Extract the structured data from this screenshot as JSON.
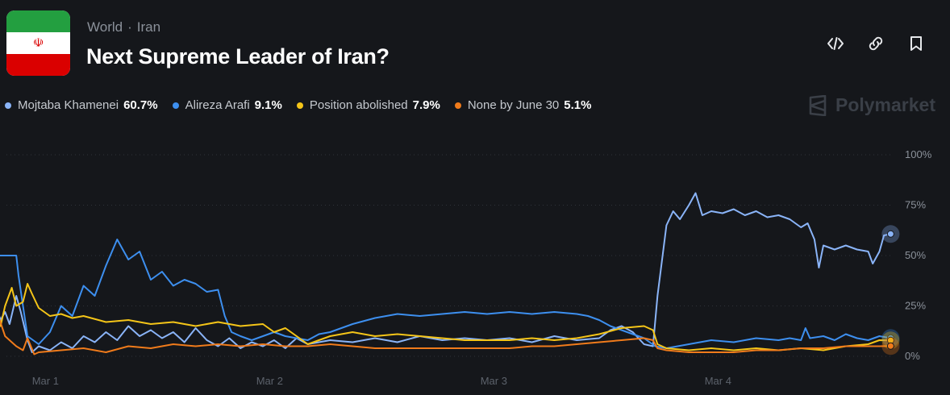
{
  "header": {
    "breadcrumb": [
      "World",
      "Iran"
    ],
    "title": "Next Supreme Leader of Iran?",
    "flag_icon": "iran-flag-icon"
  },
  "actions": [
    {
      "name": "embed-icon",
      "icon": "code-brackets"
    },
    {
      "name": "link-icon",
      "icon": "chain-link"
    },
    {
      "name": "bookmark-icon",
      "icon": "bookmark"
    }
  ],
  "brand": {
    "label": "Polymarket"
  },
  "chart_data": {
    "type": "line",
    "x_labels": [
      "Mar 1",
      "Mar 2",
      "Mar 3",
      "Mar 4"
    ],
    "x_range_days": [
      0,
      4
    ],
    "x_label_days": [
      0.03,
      1.03,
      2.03,
      3.03
    ],
    "y_ticks": [
      "0%",
      "25%",
      "50%",
      "75%",
      "100%"
    ],
    "ylim": [
      0,
      100
    ],
    "grid": true,
    "series": [
      {
        "name": "Mojtaba Khamenei",
        "display_value": "60.7%",
        "color": "#8ab4f8",
        "points": [
          [
            -0.2,
            28
          ],
          [
            -0.17,
            18
          ],
          [
            -0.15,
            22
          ],
          [
            -0.13,
            16
          ],
          [
            -0.1,
            30
          ],
          [
            -0.08,
            22
          ],
          [
            -0.05,
            8
          ],
          [
            -0.03,
            2
          ],
          [
            0,
            5
          ],
          [
            0.05,
            3
          ],
          [
            0.1,
            7
          ],
          [
            0.15,
            4
          ],
          [
            0.2,
            10
          ],
          [
            0.25,
            7
          ],
          [
            0.3,
            12
          ],
          [
            0.35,
            8
          ],
          [
            0.4,
            15
          ],
          [
            0.45,
            10
          ],
          [
            0.5,
            13
          ],
          [
            0.55,
            9
          ],
          [
            0.6,
            12
          ],
          [
            0.65,
            7
          ],
          [
            0.7,
            14
          ],
          [
            0.75,
            8
          ],
          [
            0.8,
            5
          ],
          [
            0.85,
            9
          ],
          [
            0.9,
            4
          ],
          [
            0.95,
            7
          ],
          [
            1.0,
            5
          ],
          [
            1.05,
            8
          ],
          [
            1.1,
            4
          ],
          [
            1.15,
            9
          ],
          [
            1.2,
            6
          ],
          [
            1.3,
            8
          ],
          [
            1.4,
            7
          ],
          [
            1.5,
            9
          ],
          [
            1.6,
            7
          ],
          [
            1.7,
            10
          ],
          [
            1.8,
            8
          ],
          [
            1.9,
            9
          ],
          [
            2.0,
            8
          ],
          [
            2.1,
            9
          ],
          [
            2.2,
            7
          ],
          [
            2.3,
            10
          ],
          [
            2.4,
            8
          ],
          [
            2.5,
            9
          ],
          [
            2.55,
            13
          ],
          [
            2.6,
            15
          ],
          [
            2.65,
            12
          ],
          [
            2.7,
            6
          ],
          [
            2.74,
            5
          ],
          [
            2.76,
            30
          ],
          [
            2.8,
            65
          ],
          [
            2.83,
            72
          ],
          [
            2.86,
            68
          ],
          [
            2.9,
            75
          ],
          [
            2.93,
            81
          ],
          [
            2.96,
            70
          ],
          [
            3.0,
            72
          ],
          [
            3.05,
            71
          ],
          [
            3.1,
            73
          ],
          [
            3.15,
            70
          ],
          [
            3.2,
            72
          ],
          [
            3.25,
            69
          ],
          [
            3.3,
            70
          ],
          [
            3.35,
            68
          ],
          [
            3.4,
            64
          ],
          [
            3.43,
            66
          ],
          [
            3.46,
            58
          ],
          [
            3.48,
            44
          ],
          [
            3.5,
            55
          ],
          [
            3.55,
            53
          ],
          [
            3.6,
            55
          ],
          [
            3.65,
            53
          ],
          [
            3.7,
            52
          ],
          [
            3.72,
            46
          ],
          [
            3.75,
            52
          ],
          [
            3.77,
            60
          ],
          [
            3.8,
            60.7
          ]
        ]
      },
      {
        "name": "Alireza Arafi",
        "display_value": "9.1%",
        "color": "#3d8fef",
        "points": [
          [
            -0.2,
            50
          ],
          [
            -0.1,
            50
          ],
          [
            -0.09,
            40
          ],
          [
            -0.07,
            25
          ],
          [
            -0.05,
            10
          ],
          [
            0,
            6
          ],
          [
            0.05,
            12
          ],
          [
            0.1,
            25
          ],
          [
            0.15,
            20
          ],
          [
            0.2,
            35
          ],
          [
            0.25,
            30
          ],
          [
            0.3,
            45
          ],
          [
            0.35,
            58
          ],
          [
            0.4,
            48
          ],
          [
            0.45,
            52
          ],
          [
            0.5,
            38
          ],
          [
            0.55,
            42
          ],
          [
            0.6,
            35
          ],
          [
            0.65,
            38
          ],
          [
            0.7,
            36
          ],
          [
            0.75,
            32
          ],
          [
            0.8,
            33
          ],
          [
            0.83,
            20
          ],
          [
            0.86,
            12
          ],
          [
            0.9,
            10
          ],
          [
            0.95,
            8
          ],
          [
            1.0,
            10
          ],
          [
            1.05,
            12
          ],
          [
            1.1,
            10
          ],
          [
            1.15,
            9
          ],
          [
            1.2,
            8
          ],
          [
            1.25,
            11
          ],
          [
            1.3,
            12
          ],
          [
            1.4,
            16
          ],
          [
            1.5,
            19
          ],
          [
            1.6,
            21
          ],
          [
            1.7,
            20
          ],
          [
            1.8,
            21
          ],
          [
            1.9,
            22
          ],
          [
            2.0,
            21
          ],
          [
            2.1,
            22
          ],
          [
            2.2,
            21
          ],
          [
            2.3,
            22
          ],
          [
            2.4,
            21
          ],
          [
            2.45,
            20
          ],
          [
            2.5,
            18
          ],
          [
            2.55,
            15
          ],
          [
            2.6,
            13
          ],
          [
            2.65,
            11
          ],
          [
            2.7,
            9
          ],
          [
            2.75,
            5
          ],
          [
            2.8,
            4
          ],
          [
            2.9,
            6
          ],
          [
            3.0,
            8
          ],
          [
            3.1,
            7
          ],
          [
            3.2,
            9
          ],
          [
            3.3,
            8
          ],
          [
            3.35,
            9
          ],
          [
            3.4,
            8
          ],
          [
            3.42,
            14
          ],
          [
            3.44,
            9
          ],
          [
            3.5,
            10
          ],
          [
            3.55,
            8
          ],
          [
            3.6,
            11
          ],
          [
            3.65,
            9
          ],
          [
            3.7,
            8
          ],
          [
            3.75,
            10
          ],
          [
            3.8,
            9.1
          ]
        ]
      },
      {
        "name": "Position abolished",
        "display_value": "7.9%",
        "color": "#f5c518",
        "points": [
          [
            -0.2,
            30
          ],
          [
            -0.17,
            15
          ],
          [
            -0.15,
            25
          ],
          [
            -0.12,
            34
          ],
          [
            -0.1,
            25
          ],
          [
            -0.07,
            27
          ],
          [
            -0.05,
            36
          ],
          [
            -0.03,
            31
          ],
          [
            0,
            24
          ],
          [
            0.05,
            20
          ],
          [
            0.1,
            21
          ],
          [
            0.15,
            19
          ],
          [
            0.2,
            20
          ],
          [
            0.3,
            17
          ],
          [
            0.4,
            18
          ],
          [
            0.5,
            16
          ],
          [
            0.6,
            17
          ],
          [
            0.7,
            15
          ],
          [
            0.8,
            17
          ],
          [
            0.9,
            15
          ],
          [
            1.0,
            16
          ],
          [
            1.05,
            12
          ],
          [
            1.1,
            14
          ],
          [
            1.2,
            6
          ],
          [
            1.3,
            10
          ],
          [
            1.4,
            12
          ],
          [
            1.5,
            10
          ],
          [
            1.6,
            11
          ],
          [
            1.7,
            10
          ],
          [
            1.8,
            9
          ],
          [
            1.9,
            8
          ],
          [
            2.0,
            8
          ],
          [
            2.1,
            8
          ],
          [
            2.2,
            9
          ],
          [
            2.3,
            8
          ],
          [
            2.4,
            9
          ],
          [
            2.5,
            11
          ],
          [
            2.6,
            14
          ],
          [
            2.7,
            15
          ],
          [
            2.74,
            13
          ],
          [
            2.76,
            6
          ],
          [
            2.8,
            4
          ],
          [
            2.9,
            3
          ],
          [
            3.0,
            4
          ],
          [
            3.1,
            3
          ],
          [
            3.2,
            4
          ],
          [
            3.3,
            3
          ],
          [
            3.4,
            4
          ],
          [
            3.5,
            3
          ],
          [
            3.6,
            5
          ],
          [
            3.7,
            6
          ],
          [
            3.75,
            8
          ],
          [
            3.8,
            7.9
          ]
        ]
      },
      {
        "name": "None by June 30",
        "display_value": "5.1%",
        "color": "#f07b1b",
        "points": [
          [
            -0.2,
            35
          ],
          [
            -0.18,
            20
          ],
          [
            -0.15,
            10
          ],
          [
            -0.12,
            7
          ],
          [
            -0.1,
            5
          ],
          [
            -0.07,
            3
          ],
          [
            -0.05,
            9
          ],
          [
            -0.02,
            1
          ],
          [
            0,
            2
          ],
          [
            0.1,
            3
          ],
          [
            0.2,
            4
          ],
          [
            0.3,
            2
          ],
          [
            0.4,
            5
          ],
          [
            0.5,
            4
          ],
          [
            0.6,
            6
          ],
          [
            0.7,
            5
          ],
          [
            0.8,
            6
          ],
          [
            0.9,
            5
          ],
          [
            1.0,
            6
          ],
          [
            1.1,
            5
          ],
          [
            1.2,
            5
          ],
          [
            1.3,
            6
          ],
          [
            1.4,
            5
          ],
          [
            1.5,
            4
          ],
          [
            1.6,
            4
          ],
          [
            1.7,
            4
          ],
          [
            1.8,
            4
          ],
          [
            1.9,
            4
          ],
          [
            2.0,
            4
          ],
          [
            2.1,
            4
          ],
          [
            2.2,
            5
          ],
          [
            2.3,
            5
          ],
          [
            2.4,
            6
          ],
          [
            2.5,
            7
          ],
          [
            2.6,
            8
          ],
          [
            2.7,
            9
          ],
          [
            2.74,
            8
          ],
          [
            2.76,
            4
          ],
          [
            2.8,
            3
          ],
          [
            2.9,
            2
          ],
          [
            3.0,
            2
          ],
          [
            3.1,
            2
          ],
          [
            3.2,
            3
          ],
          [
            3.3,
            3
          ],
          [
            3.4,
            4
          ],
          [
            3.5,
            4
          ],
          [
            3.6,
            5
          ],
          [
            3.7,
            5
          ],
          [
            3.75,
            5
          ],
          [
            3.8,
            5.1
          ]
        ]
      }
    ]
  }
}
